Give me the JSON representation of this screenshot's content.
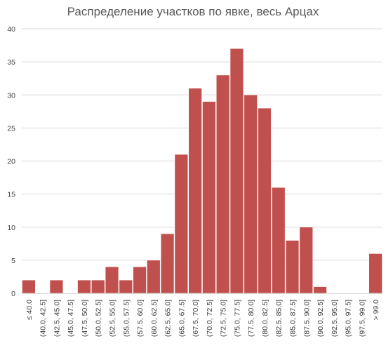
{
  "chart_data": {
    "type": "bar",
    "title": "Распределение участков по явке, весь Арцах",
    "xlabel": "",
    "ylabel": "",
    "ylim": [
      0,
      40
    ],
    "yticks": [
      "0",
      "5",
      "10",
      "15",
      "20",
      "25",
      "30",
      "35",
      "40"
    ],
    "grid": true,
    "legend": "none",
    "bar_color": "#C0504D",
    "bar_edge_color": "#ffffff",
    "gridline_color": "#D9D9D9",
    "categories": [
      "≤ 40.0",
      "(40.0, 42.5]",
      "(42.5, 45.0]",
      "(45.0, 47.5]",
      "(47.5, 50.0]",
      "(50.0, 52.5]",
      "(52.5, 55.0]",
      "(55.0, 57.5]",
      "(57.5, 60.0]",
      "(60.0, 62.5]",
      "(62.5, 65.0]",
      "(65.0, 67.5]",
      "(67.5, 70.0]",
      "(70.0, 72.5]",
      "(72.5, 75.0]",
      "(75.0, 77.5]",
      "(77.5, 80.0]",
      "(80.0, 82.5]",
      "(82.5, 85.0]",
      "(85.0, 87.5]",
      "(87.5, 90.0]",
      "(90.0, 92.5]",
      "(92.5, 95.0]",
      "(95.0, 97.5]",
      "(97.5, 99.0]",
      "> 99.0"
    ],
    "values": [
      2,
      0,
      2,
      0,
      2,
      2,
      4,
      2,
      4,
      5,
      9,
      21,
      31,
      29,
      33,
      37,
      30,
      28,
      16,
      8,
      10,
      1,
      0,
      0,
      0,
      6
    ]
  }
}
